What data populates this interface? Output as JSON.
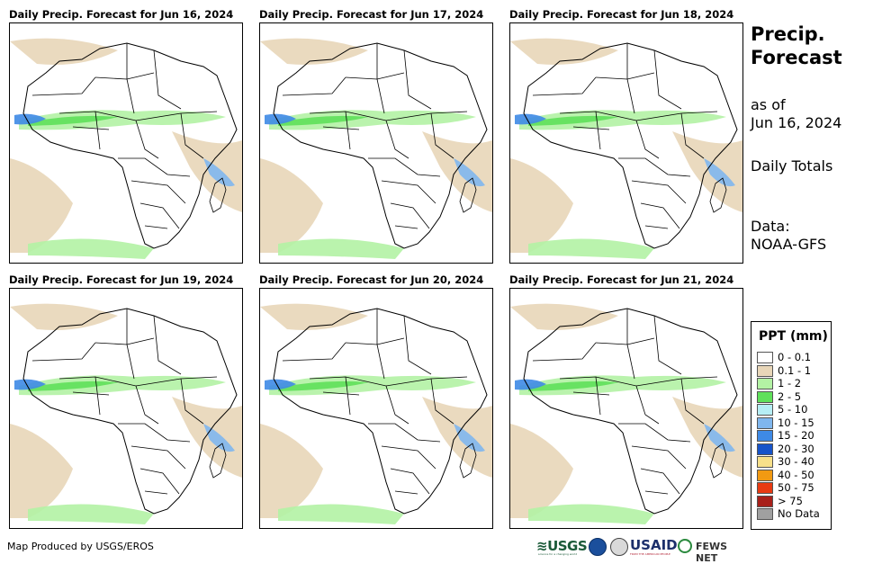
{
  "panels": [
    {
      "title": "Daily Precip. Forecast for Jun 16, 2024"
    },
    {
      "title": "Daily Precip. Forecast for Jun 17, 2024"
    },
    {
      "title": "Daily Precip. Forecast for Jun 18, 2024"
    },
    {
      "title": "Daily Precip. Forecast for Jun 19, 2024"
    },
    {
      "title": "Daily Precip. Forecast for Jun 20, 2024"
    },
    {
      "title": "Daily Precip. Forecast for Jun 21, 2024"
    }
  ],
  "side": {
    "title_line1": "Precip.",
    "title_line2": "Forecast",
    "asof_line1": "as of",
    "asof_line2": "Jun 16, 2024",
    "totals": "Daily Totals",
    "data_line1": "Data:",
    "data_line2": "NOAA-GFS"
  },
  "legend": {
    "title": "PPT (mm)",
    "items": [
      {
        "label": "0 - 0.1",
        "color": "#ffffff"
      },
      {
        "label": "0.1 - 1",
        "color": "#e8d6b8"
      },
      {
        "label": "1 - 2",
        "color": "#b3f2a4"
      },
      {
        "label": "2 - 5",
        "color": "#5fe05a"
      },
      {
        "label": "5 - 10",
        "color": "#b6eef5"
      },
      {
        "label": "10 - 15",
        "color": "#7fb6ee"
      },
      {
        "label": "15 - 20",
        "color": "#3e8ae6"
      },
      {
        "label": "20 - 30",
        "color": "#1653c9"
      },
      {
        "label": "30 - 40",
        "color": "#f7e08a"
      },
      {
        "label": "40 - 50",
        "color": "#f29a12"
      },
      {
        "label": "50 - 75",
        "color": "#e83a12"
      },
      {
        "label": "> 75",
        "color": "#a8201a"
      },
      {
        "label": "No Data",
        "color": "#a0a0a0"
      }
    ]
  },
  "footer": {
    "credit": "Map Produced by USGS/EROS",
    "logo_usgs": "≋USGS",
    "logo_usgs_tagline": "science for a changing world",
    "logo_usaid": "USAID",
    "logo_usaid_tagline": "FROM THE AMERICAN PEOPLE",
    "logo_fews": "FEWS NET"
  }
}
